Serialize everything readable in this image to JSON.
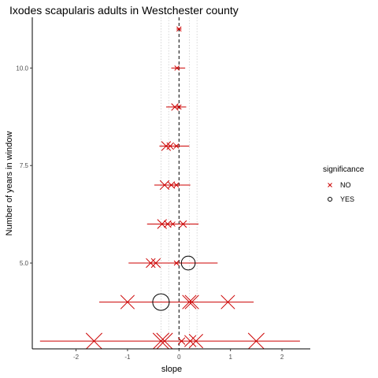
{
  "chart_data": {
    "type": "scatter",
    "title": "Ixodes scapularis adults in Westchester county",
    "xlabel": "slope",
    "ylabel": "Number of years in window",
    "xlim": [
      -2.85,
      2.55
    ],
    "ylim": [
      2.8,
      11.3
    ],
    "x_ticks": [
      -2,
      -1,
      0,
      1,
      2
    ],
    "y_ticks": [
      5.0,
      7.5,
      10.0
    ],
    "y_tick_labels": [
      "5.0",
      "7.5",
      "10.0"
    ],
    "grid": false,
    "significance_reference_lines": [
      -0.35,
      -0.2,
      0.2,
      0.35
    ],
    "zero_line": 0,
    "legend": {
      "title": "significance",
      "placement": "right",
      "entries": [
        {
          "label": "NO",
          "shape": "cross",
          "color": "#cc0000"
        },
        {
          "label": "YES",
          "shape": "circle",
          "color": "#000000"
        }
      ]
    },
    "colors": {
      "interval": "#cc0000",
      "no_marker": "#cc0000",
      "yes_marker": "#000000",
      "zero_line": "#000000",
      "ref_line": "#cccccc"
    },
    "intervals": [
      {
        "y": 11,
        "low": -0.05,
        "high": 0.05
      },
      {
        "y": 10,
        "low": -0.15,
        "high": 0.12
      },
      {
        "y": 9,
        "low": -0.25,
        "high": 0.14
      },
      {
        "y": 8,
        "low": -0.38,
        "high": 0.2
      },
      {
        "y": 7,
        "low": -0.48,
        "high": 0.22
      },
      {
        "y": 6,
        "low": -0.62,
        "high": 0.38
      },
      {
        "y": 5,
        "low": -0.98,
        "high": 0.75
      },
      {
        "y": 4,
        "low": -1.55,
        "high": 1.45
      },
      {
        "y": 3,
        "low": -2.7,
        "high": 2.35
      }
    ],
    "points": [
      {
        "x": 0.0,
        "y": 11,
        "sig": "NO",
        "size": 1
      },
      {
        "x": -0.04,
        "y": 10,
        "sig": "NO",
        "size": 1
      },
      {
        "x": -0.08,
        "y": 9,
        "sig": "NO",
        "size": 2
      },
      {
        "x": 0.0,
        "y": 9,
        "sig": "NO",
        "size": 1
      },
      {
        "x": -0.25,
        "y": 8,
        "sig": "NO",
        "size": 3
      },
      {
        "x": -0.17,
        "y": 8,
        "sig": "NO",
        "size": 2
      },
      {
        "x": -0.05,
        "y": 8,
        "sig": "NO",
        "size": 1
      },
      {
        "x": -0.28,
        "y": 7,
        "sig": "NO",
        "size": 3
      },
      {
        "x": -0.15,
        "y": 7,
        "sig": "NO",
        "size": 2
      },
      {
        "x": -0.05,
        "y": 7,
        "sig": "NO",
        "size": 1
      },
      {
        "x": -0.33,
        "y": 6,
        "sig": "NO",
        "size": 3
      },
      {
        "x": -0.22,
        "y": 6,
        "sig": "NO",
        "size": 2
      },
      {
        "x": -0.12,
        "y": 6,
        "sig": "NO",
        "size": 1
      },
      {
        "x": 0.08,
        "y": 6,
        "sig": "NO",
        "size": 2
      },
      {
        "x": -0.55,
        "y": 5,
        "sig": "NO",
        "size": 3
      },
      {
        "x": -0.45,
        "y": 5,
        "sig": "NO",
        "size": 3
      },
      {
        "x": -0.05,
        "y": 5,
        "sig": "NO",
        "size": 1
      },
      {
        "x": 0.18,
        "y": 5,
        "sig": "YES",
        "size": 4
      },
      {
        "x": -1.0,
        "y": 4,
        "sig": "NO",
        "size": 5
      },
      {
        "x": -0.35,
        "y": 4,
        "sig": "YES",
        "size": 5
      },
      {
        "x": 0.2,
        "y": 4,
        "sig": "NO",
        "size": 5
      },
      {
        "x": 0.25,
        "y": 4,
        "sig": "NO",
        "size": 5
      },
      {
        "x": 0.95,
        "y": 4,
        "sig": "NO",
        "size": 5
      },
      {
        "x": -1.65,
        "y": 3,
        "sig": "NO",
        "size": 6
      },
      {
        "x": -0.35,
        "y": 3,
        "sig": "NO",
        "size": 6
      },
      {
        "x": -0.28,
        "y": 3,
        "sig": "NO",
        "size": 6
      },
      {
        "x": 0.05,
        "y": 3,
        "sig": "NO",
        "size": 2
      },
      {
        "x": 0.22,
        "y": 3,
        "sig": "NO",
        "size": 4
      },
      {
        "x": 0.33,
        "y": 3,
        "sig": "NO",
        "size": 5
      },
      {
        "x": 1.5,
        "y": 3,
        "sig": "NO",
        "size": 6
      }
    ]
  }
}
